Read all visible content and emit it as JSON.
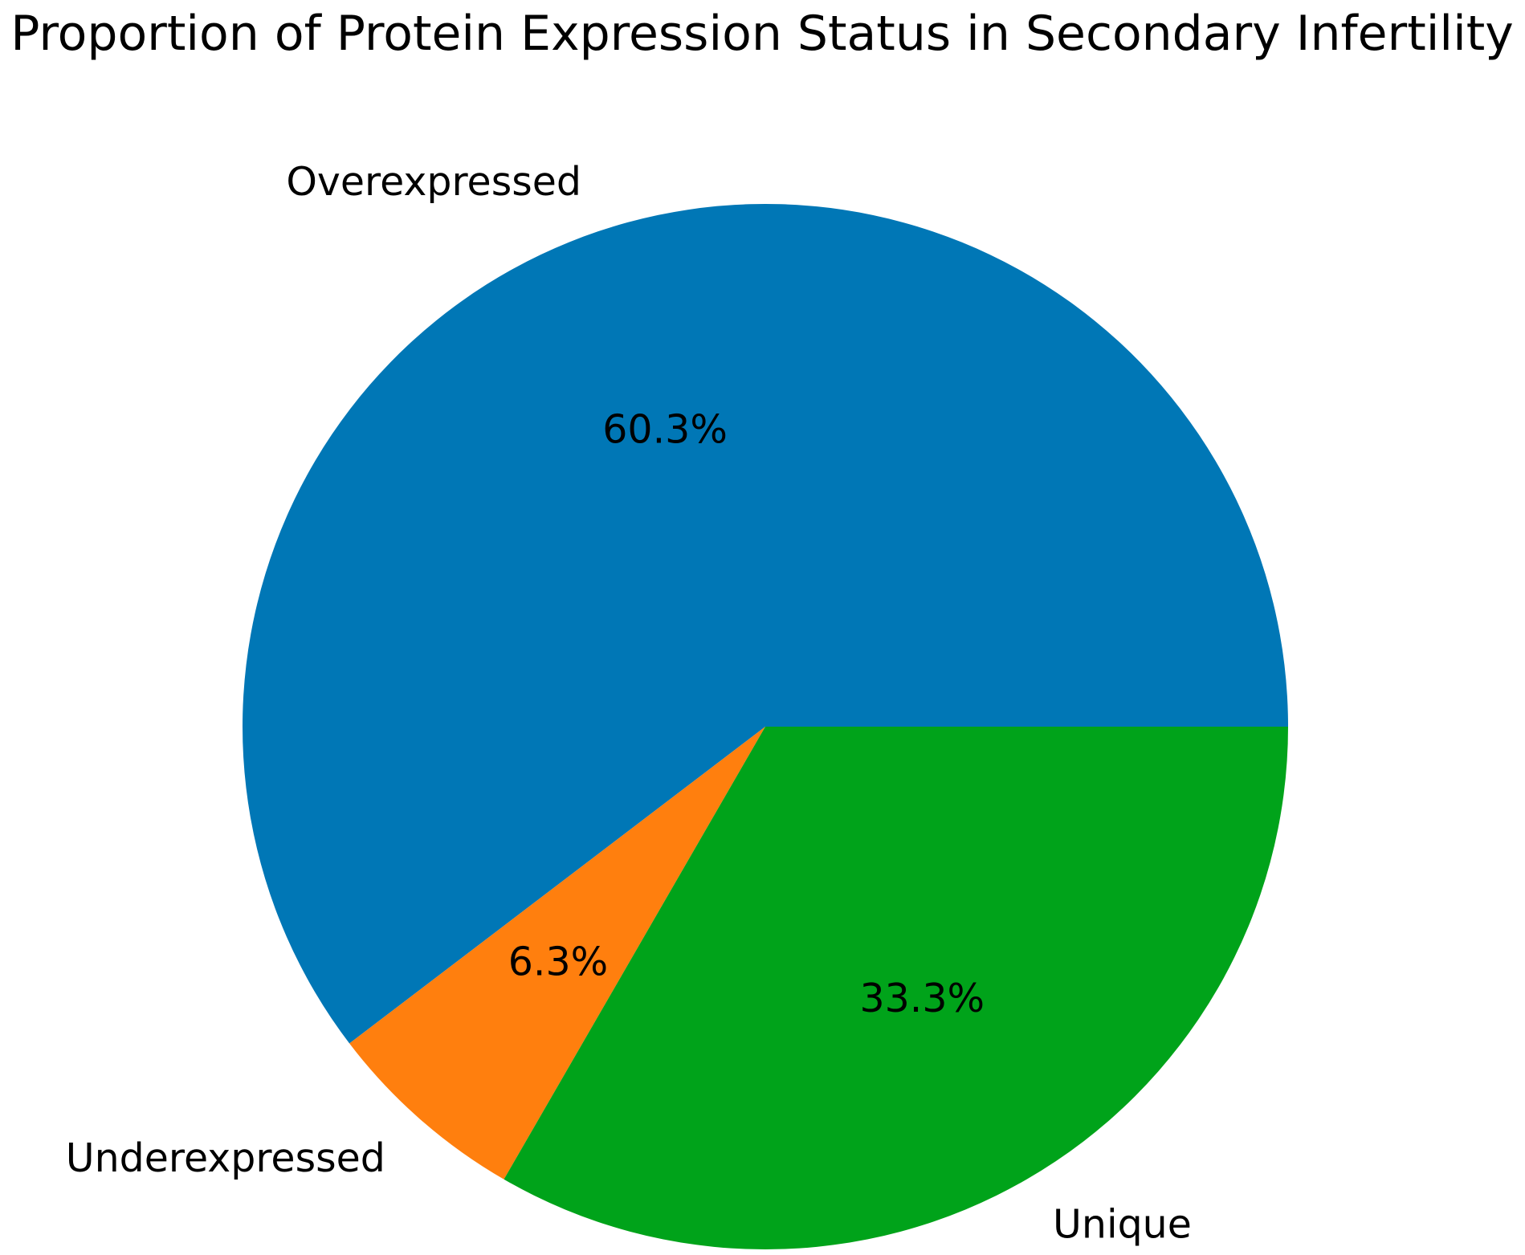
{
  "chart_data": {
    "type": "pie",
    "title": "Proportion of Protein Expression Status in Secondary Infertility",
    "labels": [
      "Overexpressed",
      "Underexpressed",
      "Unique"
    ],
    "values": [
      60.3,
      6.3,
      33.3
    ],
    "percent_labels": [
      "60.3%",
      "6.3%",
      "33.3%"
    ],
    "colors": [
      "#0077b6",
      "#ff7f0e",
      "#00a31a"
    ],
    "start_angle_deg": 0,
    "direction": "counterclockwise",
    "legend": "none"
  }
}
